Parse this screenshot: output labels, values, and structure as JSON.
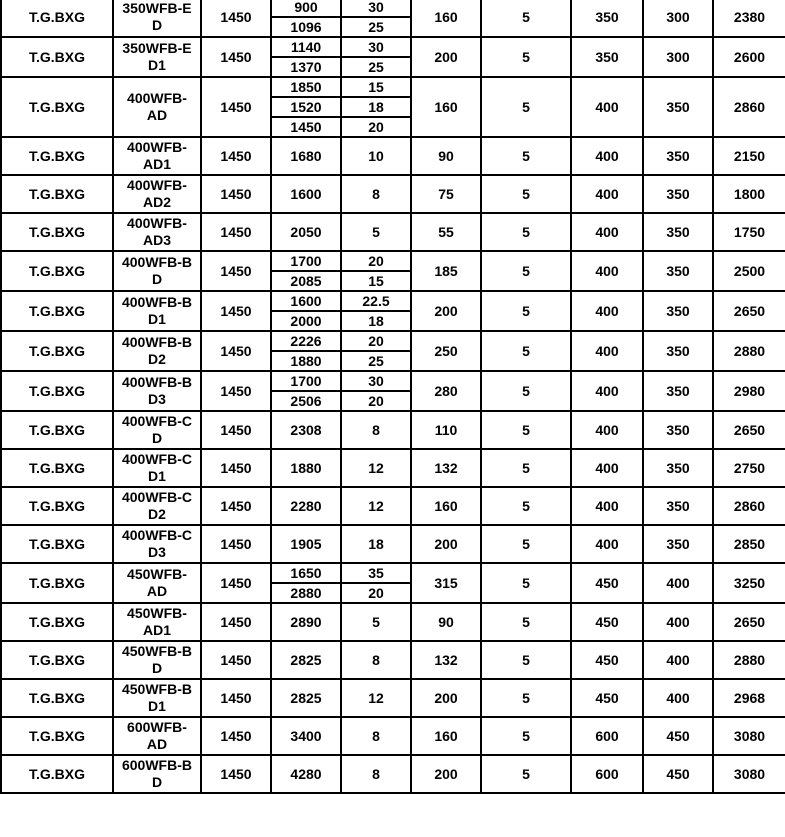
{
  "rows": [
    {
      "brand": "T.G.BXG",
      "model": "350WFB-ED",
      "speed": "1450",
      "flow": [
        "900",
        "1096"
      ],
      "head": [
        "30",
        "25"
      ],
      "power": "160",
      "c7": "5",
      "c8": "350",
      "c9": "300",
      "c10": "2380"
    },
    {
      "brand": "T.G.BXG",
      "model": "350WFB-ED1",
      "speed": "1450",
      "flow": [
        "1140",
        "1370"
      ],
      "head": [
        "30",
        "25"
      ],
      "power": "200",
      "c7": "5",
      "c8": "350",
      "c9": "300",
      "c10": "2600"
    },
    {
      "brand": "T.G.BXG",
      "model": "400WFB-AD",
      "speed": "1450",
      "flow": [
        "1850",
        "1520",
        "1450"
      ],
      "head": [
        "15",
        "18",
        "20"
      ],
      "power": "160",
      "c7": "5",
      "c8": "400",
      "c9": "350",
      "c10": "2860"
    },
    {
      "brand": "T.G.BXG",
      "model": "400WFB-AD1",
      "speed": "1450",
      "flow": [
        "1680"
      ],
      "head": [
        "10"
      ],
      "power": "90",
      "c7": "5",
      "c8": "400",
      "c9": "350",
      "c10": "2150"
    },
    {
      "brand": "T.G.BXG",
      "model": "400WFB-AD2",
      "speed": "1450",
      "flow": [
        "1600"
      ],
      "head": [
        "8"
      ],
      "power": "75",
      "c7": "5",
      "c8": "400",
      "c9": "350",
      "c10": "1800"
    },
    {
      "brand": "T.G.BXG",
      "model": "400WFB-AD3",
      "speed": "1450",
      "flow": [
        "2050"
      ],
      "head": [
        "5"
      ],
      "power": "55",
      "c7": "5",
      "c8": "400",
      "c9": "350",
      "c10": "1750"
    },
    {
      "brand": "T.G.BXG",
      "model": "400WFB-BD",
      "speed": "1450",
      "flow": [
        "1700",
        "2085"
      ],
      "head": [
        "20",
        "15"
      ],
      "power": "185",
      "c7": "5",
      "c8": "400",
      "c9": "350",
      "c10": "2500"
    },
    {
      "brand": "T.G.BXG",
      "model": "400WFB-BD1",
      "speed": "1450",
      "flow": [
        "1600",
        "2000"
      ],
      "head": [
        "22.5",
        "18"
      ],
      "power": "200",
      "c7": "5",
      "c8": "400",
      "c9": "350",
      "c10": "2650"
    },
    {
      "brand": "T.G.BXG",
      "model": "400WFB-BD2",
      "speed": "1450",
      "flow": [
        "2226",
        "1880"
      ],
      "head": [
        "20",
        "25"
      ],
      "power": "250",
      "c7": "5",
      "c8": "400",
      "c9": "350",
      "c10": "2880"
    },
    {
      "brand": "T.G.BXG",
      "model": "400WFB-BD3",
      "speed": "1450",
      "flow": [
        "1700",
        "2506"
      ],
      "head": [
        "30",
        "20"
      ],
      "power": "280",
      "c7": "5",
      "c8": "400",
      "c9": "350",
      "c10": "2980"
    },
    {
      "brand": "T.G.BXG",
      "model": "400WFB-CD",
      "speed": "1450",
      "flow": [
        "2308"
      ],
      "head": [
        "8"
      ],
      "power": "110",
      "c7": "5",
      "c8": "400",
      "c9": "350",
      "c10": "2650"
    },
    {
      "brand": "T.G.BXG",
      "model": "400WFB-CD1",
      "speed": "1450",
      "flow": [
        "1880"
      ],
      "head": [
        "12"
      ],
      "power": "132",
      "c7": "5",
      "c8": "400",
      "c9": "350",
      "c10": "2750"
    },
    {
      "brand": "T.G.BXG",
      "model": "400WFB-CD2",
      "speed": "1450",
      "flow": [
        "2280"
      ],
      "head": [
        "12"
      ],
      "power": "160",
      "c7": "5",
      "c8": "400",
      "c9": "350",
      "c10": "2860"
    },
    {
      "brand": "T.G.BXG",
      "model": "400WFB-CD3",
      "speed": "1450",
      "flow": [
        "1905"
      ],
      "head": [
        "18"
      ],
      "power": "200",
      "c7": "5",
      "c8": "400",
      "c9": "350",
      "c10": "2850"
    },
    {
      "brand": "T.G.BXG",
      "model": "450WFB-AD",
      "speed": "1450",
      "flow": [
        "1650",
        "2880"
      ],
      "head": [
        "35",
        "20"
      ],
      "power": "315",
      "c7": "5",
      "c8": "450",
      "c9": "400",
      "c10": "3250"
    },
    {
      "brand": "T.G.BXG",
      "model": "450WFB-AD1",
      "speed": "1450",
      "flow": [
        "2890"
      ],
      "head": [
        "5"
      ],
      "power": "90",
      "c7": "5",
      "c8": "450",
      "c9": "400",
      "c10": "2650"
    },
    {
      "brand": "T.G.BXG",
      "model": "450WFB-BD",
      "speed": "1450",
      "flow": [
        "2825"
      ],
      "head": [
        "8"
      ],
      "power": "132",
      "c7": "5",
      "c8": "450",
      "c9": "400",
      "c10": "2880"
    },
    {
      "brand": "T.G.BXG",
      "model": "450WFB-BD1",
      "speed": "1450",
      "flow": [
        "2825"
      ],
      "head": [
        "12"
      ],
      "power": "200",
      "c7": "5",
      "c8": "450",
      "c9": "400",
      "c10": "2968"
    },
    {
      "brand": "T.G.BXG",
      "model": "600WFB-AD",
      "speed": "1450",
      "flow": [
        "3400"
      ],
      "head": [
        "8"
      ],
      "power": "160",
      "c7": "5",
      "c8": "600",
      "c9": "450",
      "c10": "3080"
    },
    {
      "brand": "T.G.BXG",
      "model": "600WFB-BD",
      "speed": "1450",
      "flow": [
        "4280"
      ],
      "head": [
        "8"
      ],
      "power": "200",
      "c7": "5",
      "c8": "600",
      "c9": "450",
      "c10": "3080"
    }
  ]
}
